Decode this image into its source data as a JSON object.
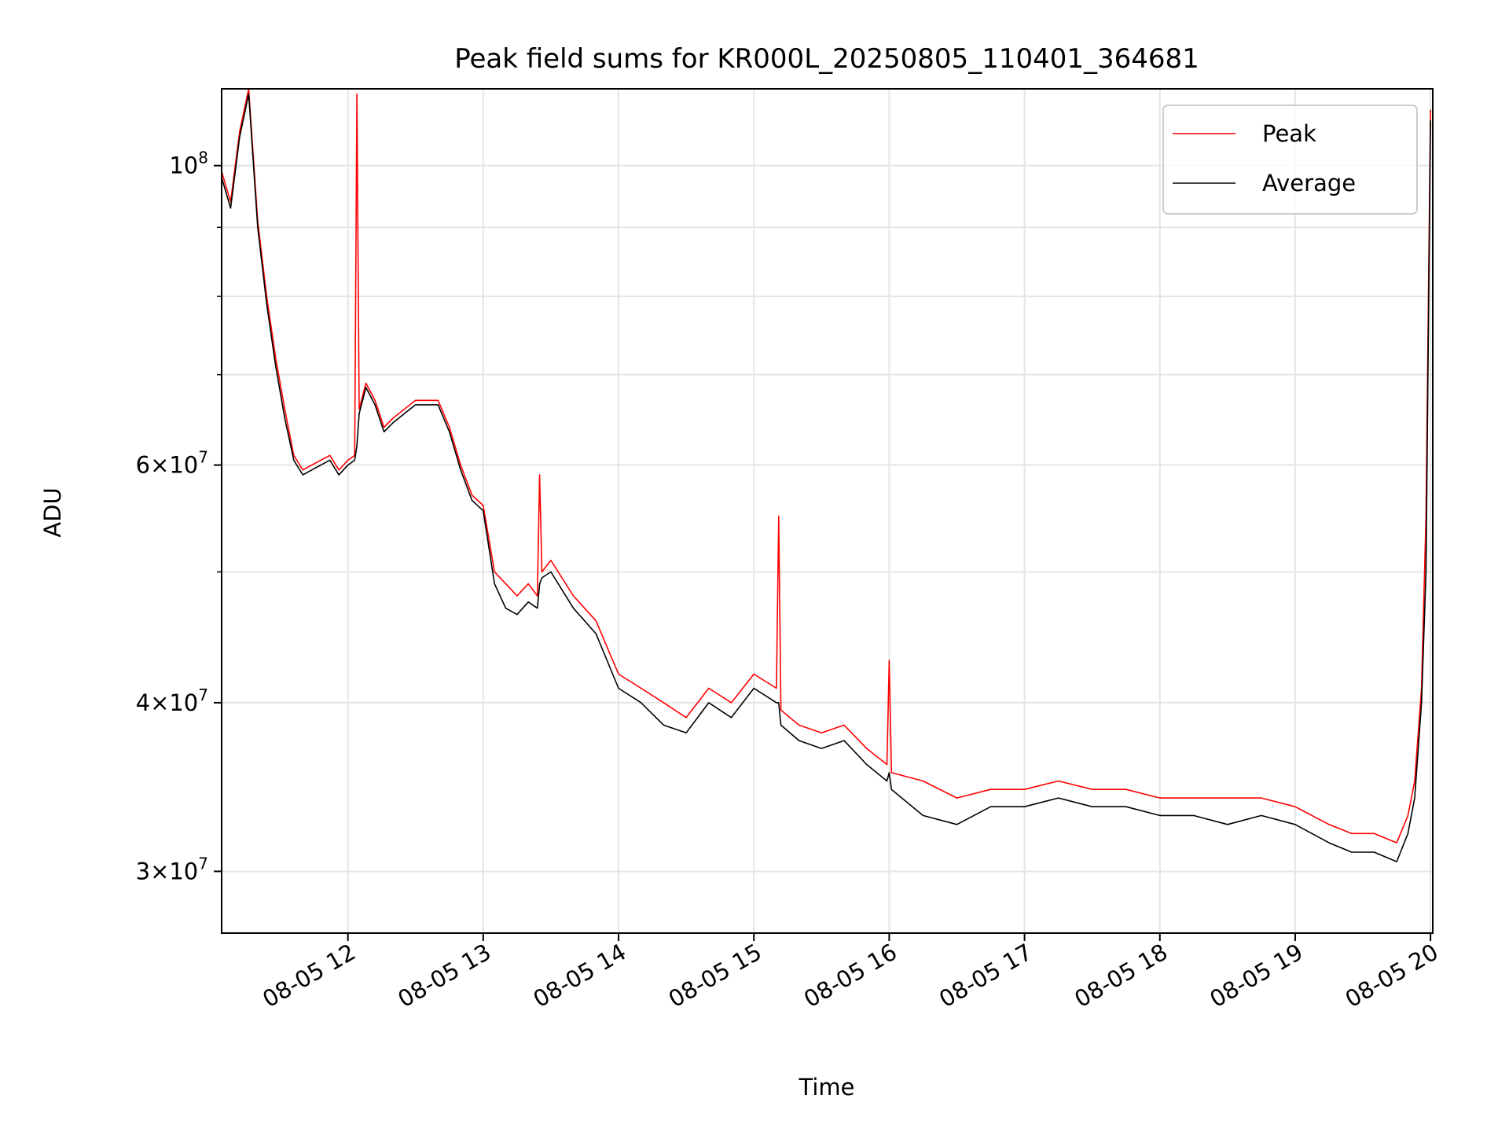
{
  "chart_data": {
    "type": "line",
    "title": "Peak field sums for KR000L_20250805_110401_364681",
    "xlabel": "Time",
    "ylabel": "ADU",
    "xlim": [
      "2025-08-05T11:04:01",
      "2025-08-05T20:01:00"
    ],
    "ylim": [
      27000000,
      114000000
    ],
    "yscale": "log",
    "grid": true,
    "legend_position": "top-right",
    "x_ticks": [
      {
        "value": "2025-08-05T12:00",
        "label": "08-05 12"
      },
      {
        "value": "2025-08-05T13:00",
        "label": "08-05 13"
      },
      {
        "value": "2025-08-05T14:00",
        "label": "08-05 14"
      },
      {
        "value": "2025-08-05T15:00",
        "label": "08-05 15"
      },
      {
        "value": "2025-08-05T16:00",
        "label": "08-05 16"
      },
      {
        "value": "2025-08-05T17:00",
        "label": "08-05 17"
      },
      {
        "value": "2025-08-05T18:00",
        "label": "08-05 18"
      },
      {
        "value": "2025-08-05T19:00",
        "label": "08-05 19"
      },
      {
        "value": "2025-08-05T20:00",
        "label": "08-05 20"
      }
    ],
    "y_ticks": [
      {
        "value": 30000000,
        "mantissa": "3",
        "exp": "7"
      },
      {
        "value": 40000000,
        "mantissa": "4",
        "exp": "7"
      },
      {
        "value": 60000000,
        "mantissa": "6",
        "exp": "7"
      },
      {
        "value": 100000000,
        "mantissa": "",
        "exp": "8"
      }
    ],
    "y_minor_ticks": [
      50000000,
      70000000,
      80000000,
      90000000
    ],
    "series": [
      {
        "name": "Peak",
        "color": "#ff0000",
        "x": [
          "2025-08-05T11:04",
          "2025-08-05T11:08",
          "2025-08-05T11:12",
          "2025-08-05T11:16",
          "2025-08-05T11:20",
          "2025-08-05T11:24",
          "2025-08-05T11:28",
          "2025-08-05T11:32",
          "2025-08-05T11:36",
          "2025-08-05T11:40",
          "2025-08-05T11:44",
          "2025-08-05T11:48",
          "2025-08-05T11:52",
          "2025-08-05T11:56",
          "2025-08-05T12:00",
          "2025-08-05T12:03",
          "2025-08-05T12:04",
          "2025-08-05T12:05",
          "2025-08-05T12:08",
          "2025-08-05T12:12",
          "2025-08-05T12:16",
          "2025-08-05T12:20",
          "2025-08-05T12:30",
          "2025-08-05T12:40",
          "2025-08-05T12:45",
          "2025-08-05T12:50",
          "2025-08-05T12:55",
          "2025-08-05T13:00",
          "2025-08-05T13:05",
          "2025-08-05T13:10",
          "2025-08-05T13:15",
          "2025-08-05T13:20",
          "2025-08-05T13:24",
          "2025-08-05T13:25",
          "2025-08-05T13:26",
          "2025-08-05T13:30",
          "2025-08-05T13:40",
          "2025-08-05T13:50",
          "2025-08-05T14:00",
          "2025-08-05T14:10",
          "2025-08-05T14:20",
          "2025-08-05T14:30",
          "2025-08-05T14:40",
          "2025-08-05T14:50",
          "2025-08-05T15:00",
          "2025-08-05T15:10",
          "2025-08-05T15:11",
          "2025-08-05T15:12",
          "2025-08-05T15:20",
          "2025-08-05T15:30",
          "2025-08-05T15:40",
          "2025-08-05T15:50",
          "2025-08-05T15:59",
          "2025-08-05T16:00",
          "2025-08-05T16:01",
          "2025-08-05T16:15",
          "2025-08-05T16:30",
          "2025-08-05T16:45",
          "2025-08-05T17:00",
          "2025-08-05T17:15",
          "2025-08-05T17:30",
          "2025-08-05T17:45",
          "2025-08-05T18:00",
          "2025-08-05T18:15",
          "2025-08-05T18:30",
          "2025-08-05T18:45",
          "2025-08-05T19:00",
          "2025-08-05T19:15",
          "2025-08-05T19:25",
          "2025-08-05T19:35",
          "2025-08-05T19:45",
          "2025-08-05T19:50",
          "2025-08-05T19:53",
          "2025-08-05T19:56",
          "2025-08-05T19:58",
          "2025-08-05T20:00"
        ],
        "values": [
          99000000,
          94000000,
          106000000,
          114000000,
          91000000,
          80000000,
          72000000,
          66000000,
          61000000,
          59500000,
          60000000,
          60500000,
          61000000,
          59500000,
          60500000,
          61000000,
          113000000,
          66000000,
          69000000,
          67000000,
          64000000,
          65000000,
          67000000,
          67000000,
          64000000,
          60000000,
          57000000,
          56000000,
          50000000,
          49000000,
          48000000,
          49000000,
          48000000,
          59000000,
          50000000,
          51000000,
          48000000,
          46000000,
          42000000,
          41000000,
          40000000,
          39000000,
          41000000,
          40000000,
          42000000,
          41000000,
          55000000,
          39500000,
          38500000,
          38000000,
          38500000,
          37000000,
          36000000,
          43000000,
          35500000,
          35000000,
          34000000,
          34500000,
          34500000,
          35000000,
          34500000,
          34500000,
          34000000,
          34000000,
          34000000,
          34000000,
          33500000,
          32500000,
          32000000,
          32000000,
          31500000,
          33000000,
          35000000,
          41000000,
          55000000,
          110000000
        ]
      },
      {
        "name": "Average",
        "color": "#000000",
        "x": [
          "2025-08-05T11:04",
          "2025-08-05T11:08",
          "2025-08-05T11:12",
          "2025-08-05T11:16",
          "2025-08-05T11:20",
          "2025-08-05T11:24",
          "2025-08-05T11:28",
          "2025-08-05T11:32",
          "2025-08-05T11:36",
          "2025-08-05T11:40",
          "2025-08-05T11:44",
          "2025-08-05T11:48",
          "2025-08-05T11:52",
          "2025-08-05T11:56",
          "2025-08-05T12:00",
          "2025-08-05T12:03",
          "2025-08-05T12:04",
          "2025-08-05T12:05",
          "2025-08-05T12:08",
          "2025-08-05T12:12",
          "2025-08-05T12:16",
          "2025-08-05T12:20",
          "2025-08-05T12:30",
          "2025-08-05T12:40",
          "2025-08-05T12:45",
          "2025-08-05T12:50",
          "2025-08-05T12:55",
          "2025-08-05T13:00",
          "2025-08-05T13:05",
          "2025-08-05T13:10",
          "2025-08-05T13:15",
          "2025-08-05T13:20",
          "2025-08-05T13:24",
          "2025-08-05T13:25",
          "2025-08-05T13:26",
          "2025-08-05T13:30",
          "2025-08-05T13:40",
          "2025-08-05T13:50",
          "2025-08-05T14:00",
          "2025-08-05T14:10",
          "2025-08-05T14:20",
          "2025-08-05T14:30",
          "2025-08-05T14:40",
          "2025-08-05T14:50",
          "2025-08-05T15:00",
          "2025-08-05T15:10",
          "2025-08-05T15:11",
          "2025-08-05T15:12",
          "2025-08-05T15:20",
          "2025-08-05T15:30",
          "2025-08-05T15:40",
          "2025-08-05T15:50",
          "2025-08-05T15:59",
          "2025-08-05T16:00",
          "2025-08-05T16:01",
          "2025-08-05T16:15",
          "2025-08-05T16:30",
          "2025-08-05T16:45",
          "2025-08-05T17:00",
          "2025-08-05T17:15",
          "2025-08-05T17:30",
          "2025-08-05T17:45",
          "2025-08-05T18:00",
          "2025-08-05T18:15",
          "2025-08-05T18:30",
          "2025-08-05T18:45",
          "2025-08-05T19:00",
          "2025-08-05T19:15",
          "2025-08-05T19:25",
          "2025-08-05T19:35",
          "2025-08-05T19:45",
          "2025-08-05T19:50",
          "2025-08-05T19:53",
          "2025-08-05T19:56",
          "2025-08-05T19:58",
          "2025-08-05T20:00"
        ],
        "values": [
          98000000,
          93000000,
          105000000,
          113000000,
          90000000,
          79000000,
          71000000,
          65000000,
          60500000,
          59000000,
          59500000,
          60000000,
          60500000,
          59000000,
          60000000,
          60500000,
          62000000,
          65500000,
          68500000,
          66500000,
          63500000,
          64500000,
          66500000,
          66500000,
          63500000,
          59500000,
          56500000,
          55500000,
          49000000,
          47000000,
          46500000,
          47500000,
          47000000,
          49000000,
          49500000,
          50000000,
          47000000,
          45000000,
          41000000,
          40000000,
          38500000,
          38000000,
          40000000,
          39000000,
          41000000,
          40000000,
          40000000,
          38500000,
          37500000,
          37000000,
          37500000,
          36000000,
          35000000,
          35500000,
          34500000,
          33000000,
          32500000,
          33500000,
          33500000,
          34000000,
          33500000,
          33500000,
          33000000,
          33000000,
          32500000,
          33000000,
          32500000,
          31500000,
          31000000,
          31000000,
          30500000,
          32000000,
          34000000,
          40000000,
          50000000,
          108000000
        ]
      }
    ]
  }
}
